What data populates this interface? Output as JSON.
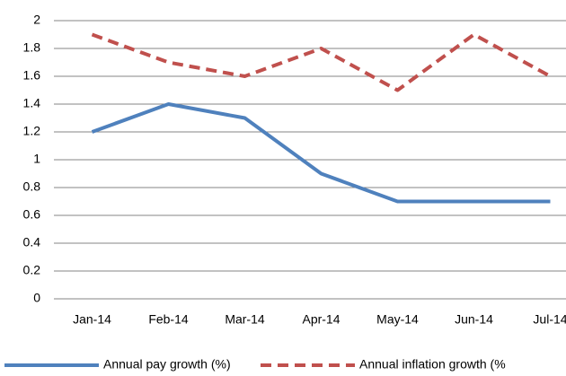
{
  "chart_data": {
    "type": "line",
    "categories": [
      "Jan-14",
      "Feb-14",
      "Mar-14",
      "Apr-14",
      "May-14",
      "Jun-14",
      "Jul-14"
    ],
    "series": [
      {
        "name": "Annual pay growth (%)",
        "color": "#4f81bd",
        "dash": false,
        "values": [
          1.2,
          1.4,
          1.3,
          0.9,
          0.7,
          0.7,
          0.7
        ]
      },
      {
        "name": "Annual inflation growth (%",
        "color": "#c0504d",
        "dash": true,
        "values": [
          1.9,
          1.7,
          1.6,
          1.8,
          1.5,
          1.9,
          1.6
        ]
      }
    ],
    "ylim": [
      0,
      2
    ],
    "yticks": [
      0,
      0.2,
      0.4,
      0.6,
      0.8,
      1,
      1.2,
      1.4,
      1.6,
      1.8,
      2
    ],
    "grid": true,
    "legend": "bottom"
  }
}
